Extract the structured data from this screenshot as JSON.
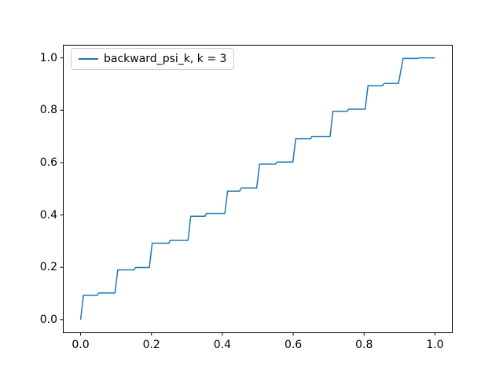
{
  "window": {
    "background": "#ffffff"
  },
  "chart_data": {
    "type": "line",
    "title": "",
    "xlabel": "",
    "ylabel": "",
    "xlim": [
      -0.05,
      1.05
    ],
    "ylim": [
      -0.05,
      1.05
    ],
    "grid": false,
    "frame_color": "#000000",
    "x_ticks": [
      0.0,
      0.2,
      0.4,
      0.6,
      0.8,
      1.0
    ],
    "x_tick_labels": [
      "0.0",
      "0.2",
      "0.4",
      "0.6",
      "0.8",
      "1.0"
    ],
    "y_ticks": [
      0.0,
      0.2,
      0.4,
      0.6,
      0.8,
      1.0
    ],
    "y_tick_labels": [
      "0.0",
      "0.2",
      "0.4",
      "0.6",
      "0.8",
      "1.0"
    ],
    "legend": {
      "position": "upper left",
      "entries": [
        "backward_psi_k, k = 3"
      ]
    },
    "series": [
      {
        "name": "backward_psi_k, k = 3",
        "color": "#1f77b4",
        "line_width": 1.5,
        "x": [
          0.0,
          0.008,
          0.047,
          0.051,
          0.097,
          0.105,
          0.151,
          0.155,
          0.194,
          0.202,
          0.249,
          0.253,
          0.303,
          0.311,
          0.351,
          0.355,
          0.407,
          0.415,
          0.449,
          0.453,
          0.497,
          0.505,
          0.55,
          0.554,
          0.599,
          0.607,
          0.649,
          0.653,
          0.704,
          0.712,
          0.752,
          0.756,
          0.803,
          0.811,
          0.852,
          0.856,
          0.897,
          0.91,
          0.952,
          0.956,
          1.0
        ],
        "y": [
          0.0,
          0.093,
          0.093,
          0.102,
          0.102,
          0.19,
          0.19,
          0.199,
          0.199,
          0.292,
          0.292,
          0.303,
          0.303,
          0.395,
          0.395,
          0.406,
          0.406,
          0.491,
          0.491,
          0.503,
          0.503,
          0.594,
          0.594,
          0.602,
          0.602,
          0.691,
          0.691,
          0.7,
          0.7,
          0.796,
          0.796,
          0.804,
          0.804,
          0.894,
          0.894,
          0.902,
          0.902,
          0.998,
          0.998,
          1.0,
          1.0
        ]
      }
    ]
  }
}
